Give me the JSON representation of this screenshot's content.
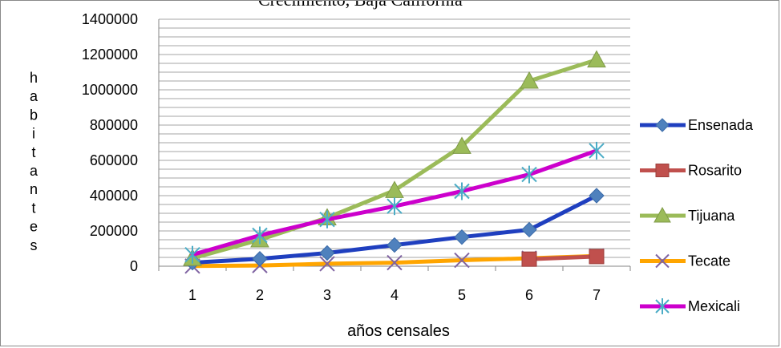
{
  "chart_data": {
    "type": "line",
    "title": "",
    "top_text": "Crecimiento, Baja California",
    "xlabel": "años censales",
    "ylabel": "habitantes",
    "categories": [
      "1",
      "2",
      "3",
      "4",
      "5",
      "6",
      "7"
    ],
    "ylim": [
      0,
      1400000
    ],
    "yticks": [
      "0",
      "200000",
      "400000",
      "600000",
      "800000",
      "1000000",
      "1200000",
      "1400000"
    ],
    "grid": true,
    "legend_position": "right",
    "series": [
      {
        "name": "Ensenada",
        "color": "#1f3fbf",
        "marker_color": "#4f81bd",
        "marker": "diamond",
        "values": [
          20000,
          42000,
          75000,
          120000,
          165000,
          207000,
          400000
        ]
      },
      {
        "name": "Rosarito",
        "color": "#c0504d",
        "marker_color": "#c0504d",
        "marker": "square",
        "values": [
          null,
          null,
          null,
          null,
          null,
          40000,
          55000
        ]
      },
      {
        "name": "Tijuana",
        "color": "#9bbb59",
        "marker_color": "#9bbb59",
        "marker": "triangle",
        "values": [
          45000,
          150000,
          275000,
          430000,
          680000,
          1050000,
          1170000
        ]
      },
      {
        "name": "Tecate",
        "color": "#ffa500",
        "marker_color": "#8064a2",
        "marker": "x",
        "values": [
          1000,
          4000,
          14000,
          20000,
          34000,
          45000,
          58000
        ]
      },
      {
        "name": "Mexicali",
        "color": "#cc00cc",
        "marker_color": "#4bacc6",
        "marker": "star",
        "values": [
          65000,
          175000,
          265000,
          340000,
          425000,
          520000,
          655000
        ]
      }
    ]
  }
}
